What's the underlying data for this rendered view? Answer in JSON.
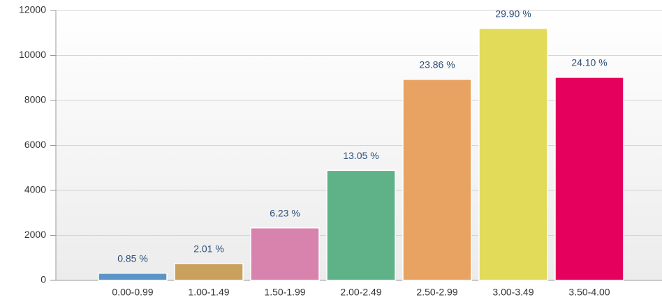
{
  "chart_data": {
    "type": "bar",
    "categories": [
      "0.00-0.99",
      "1.00-1.49",
      "1.50-1.99",
      "2.00-2.49",
      "2.50-2.99",
      "3.00-3.49",
      "3.50-4.00"
    ],
    "values": [
      318,
      753,
      2334,
      4889,
      8938,
      11201,
      9028
    ],
    "data_labels": [
      "0.85 %",
      "2.01 %",
      "6.23 %",
      "13.05 %",
      "23.86 %",
      "29.90 %",
      "24.10 %"
    ],
    "colors": [
      "#5b94c6",
      "#c9a05e",
      "#d783ad",
      "#5fb288",
      "#e8a363",
      "#e2da59",
      "#e5005d"
    ],
    "ylim": [
      0,
      12000
    ],
    "yticks": [
      0,
      2000,
      4000,
      6000,
      8000,
      10000,
      12000
    ],
    "grid": true
  }
}
